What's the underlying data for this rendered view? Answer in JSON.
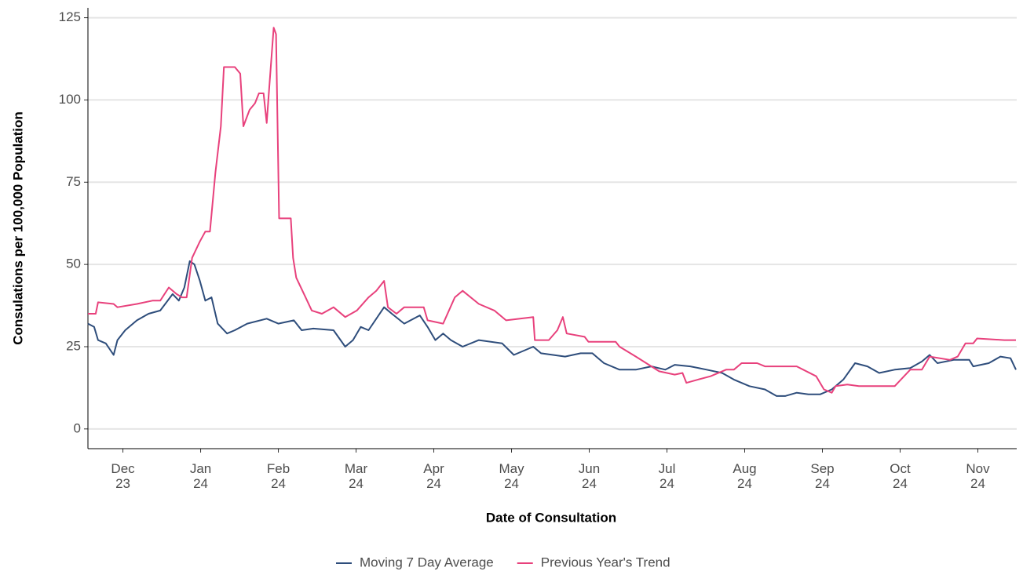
{
  "chart_data": {
    "type": "line",
    "x_label": "Date of Consultation",
    "y_label": "Consulations per 100,000 Population",
    "xlim": [
      -0.45,
      11.5
    ],
    "xticks": [
      {
        "value": 0,
        "label": "Dec 23"
      },
      {
        "value": 1,
        "label": "Jan 24"
      },
      {
        "value": 2,
        "label": "Feb 24"
      },
      {
        "value": 3,
        "label": "Mar 24"
      },
      {
        "value": 4,
        "label": "Apr 24"
      },
      {
        "value": 5,
        "label": "May 24"
      },
      {
        "value": 6,
        "label": "Jun 24"
      },
      {
        "value": 7,
        "label": "Jul 24"
      },
      {
        "value": 8,
        "label": "Aug 24"
      },
      {
        "value": 9,
        "label": "Sep 24"
      },
      {
        "value": 10,
        "label": "Oct 24"
      },
      {
        "value": 11,
        "label": "Nov 24"
      }
    ],
    "ylim": [
      -6,
      128
    ],
    "yticks": [
      0,
      25,
      50,
      75,
      100,
      125
    ],
    "grid": true,
    "legend": "bottom",
    "series": [
      {
        "name": "Moving 7 Day Average",
        "color": "#2e4d7b",
        "x": [
          -0.45,
          -0.37,
          -0.32,
          -0.22,
          -0.12,
          -0.07,
          0.03,
          0.18,
          0.33,
          0.48,
          0.64,
          0.72,
          0.79,
          0.86,
          0.92,
          0.99,
          1.06,
          1.14,
          1.22,
          1.34,
          1.44,
          1.6,
          1.85,
          2.0,
          2.2,
          2.3,
          2.45,
          2.71,
          2.86,
          2.96,
          3.06,
          3.16,
          3.36,
          3.46,
          3.62,
          3.82,
          3.92,
          4.02,
          4.12,
          4.22,
          4.37,
          4.58,
          4.88,
          5.03,
          5.28,
          5.38,
          5.69,
          5.89,
          6.04,
          6.19,
          6.39,
          6.6,
          6.8,
          6.98,
          7.1,
          7.3,
          7.51,
          7.71,
          7.86,
          8.06,
          8.26,
          8.41,
          8.52,
          8.67,
          8.82,
          8.97,
          9.12,
          9.27,
          9.42,
          9.58,
          9.73,
          9.93,
          10.13,
          10.28,
          10.38,
          10.48,
          10.69,
          10.89,
          10.94,
          11.14,
          11.29,
          11.42,
          11.49
        ],
        "values": [
          32,
          31,
          27,
          26,
          22.5,
          27,
          30,
          33,
          35,
          36,
          41,
          39,
          43,
          51,
          50,
          45,
          39,
          40,
          32,
          29,
          30,
          32,
          33.5,
          32,
          33,
          30,
          30.5,
          30,
          25,
          27,
          31,
          30,
          37,
          35,
          32,
          34.5,
          31,
          27,
          29,
          27,
          25,
          27,
          26,
          22.5,
          25,
          23,
          22,
          23,
          23,
          20,
          18,
          18,
          19,
          18,
          19.5,
          19,
          18,
          17,
          15,
          13,
          12,
          10,
          10,
          11,
          10.5,
          10.5,
          12,
          15,
          20,
          19,
          17,
          18,
          18.5,
          20.5,
          22.5,
          20,
          21,
          21,
          19,
          20,
          22,
          21.5,
          18
        ]
      },
      {
        "name": "Previous Year's Trend",
        "color": "#e8417c",
        "x": [
          -0.45,
          -0.35,
          -0.32,
          -0.12,
          -0.07,
          0.18,
          0.38,
          0.48,
          0.59,
          0.69,
          0.76,
          0.82,
          0.89,
          0.99,
          1.06,
          1.12,
          1.19,
          1.26,
          1.3,
          1.44,
          1.51,
          1.55,
          1.63,
          1.7,
          1.75,
          1.81,
          1.85,
          1.88,
          1.94,
          1.97,
          2.01,
          2.1,
          2.16,
          2.19,
          2.23,
          2.35,
          2.43,
          2.56,
          2.71,
          2.86,
          3.01,
          3.16,
          3.26,
          3.36,
          3.41,
          3.52,
          3.62,
          3.87,
          3.92,
          4.12,
          4.27,
          4.37,
          4.58,
          4.78,
          4.93,
          5.28,
          5.3,
          5.48,
          5.59,
          5.66,
          5.71,
          5.94,
          5.99,
          6.34,
          6.39,
          6.6,
          6.7,
          6.9,
          7.1,
          7.2,
          7.25,
          7.4,
          7.56,
          7.76,
          7.86,
          7.96,
          8.16,
          8.26,
          8.67,
          8.92,
          9.02,
          9.12,
          9.17,
          9.32,
          9.47,
          9.93,
          10.13,
          10.28,
          10.38,
          10.64,
          10.74,
          10.84,
          10.94,
          10.99,
          11.34,
          11.44,
          11.49
        ],
        "values": [
          35,
          35,
          38.5,
          38,
          37,
          38,
          39,
          39,
          43,
          41,
          40,
          40,
          52,
          57,
          60,
          60,
          78,
          92,
          110,
          110,
          108,
          92,
          97,
          99,
          102,
          102,
          93,
          103,
          122,
          120,
          64,
          64,
          64,
          52,
          46,
          40,
          36,
          35,
          37,
          34,
          36,
          40,
          42,
          45,
          37,
          35,
          37,
          37,
          33,
          32,
          40,
          42,
          38,
          36,
          33,
          34,
          27,
          27,
          30,
          34,
          29,
          28,
          26.5,
          26.5,
          25,
          22,
          20.5,
          17.5,
          16.5,
          17,
          14,
          15,
          16,
          18,
          18,
          20,
          20,
          19,
          19,
          16,
          12,
          11,
          13,
          13.5,
          13,
          13,
          18,
          18,
          22,
          21,
          22,
          26,
          26,
          27.5,
          27,
          27,
          27
        ]
      }
    ]
  }
}
